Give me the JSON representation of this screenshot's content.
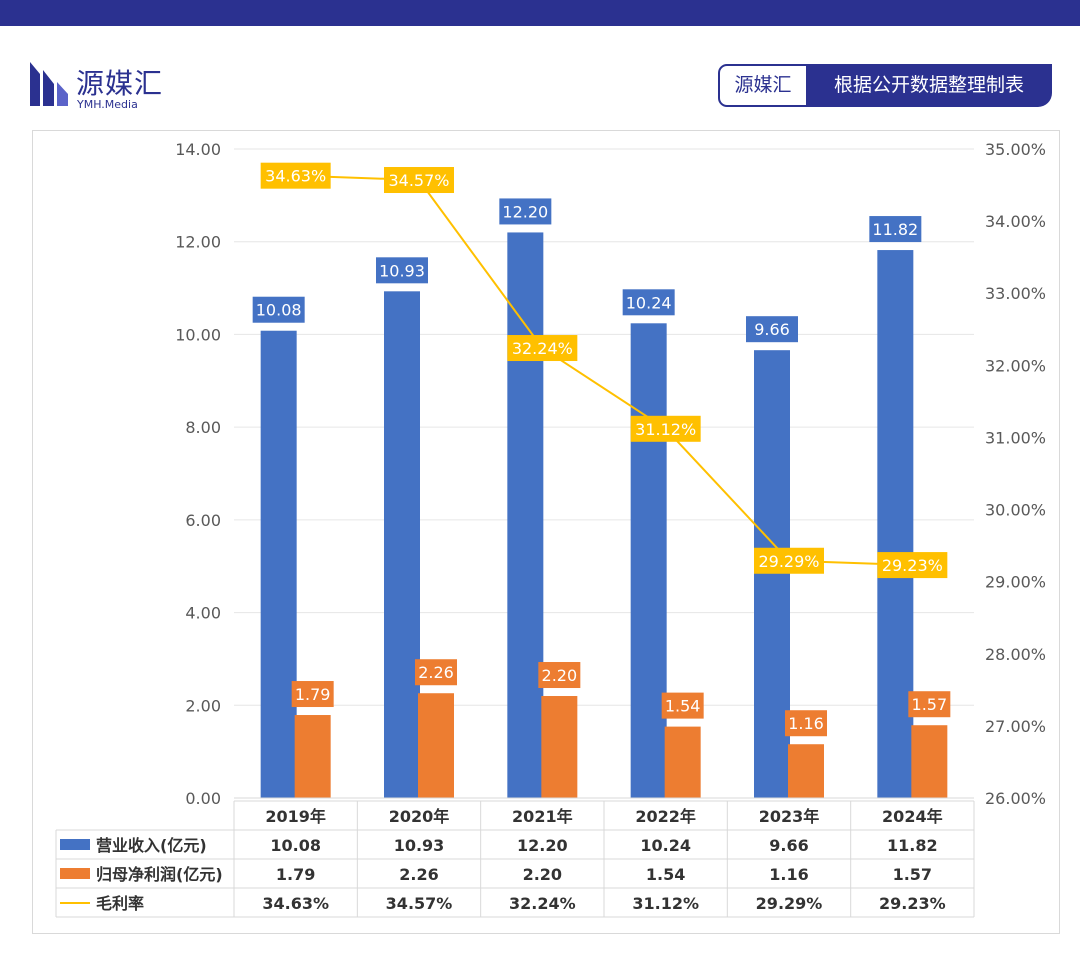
{
  "brand": {
    "name": "源媒汇",
    "domain": "YMH.Media"
  },
  "source_tag": {
    "brand": "源媒汇",
    "text": "根据公开数据整理制表"
  },
  "colors": {
    "revenue": "#4472c4",
    "profit": "#ed7d31",
    "margin": "#ffc000",
    "brand": "#2b3190"
  },
  "chart_data": {
    "type": "bar",
    "categories": [
      "2019年",
      "2020年",
      "2021年",
      "2022年",
      "2023年",
      "2024年"
    ],
    "series": [
      {
        "name": "营业收入(亿元)",
        "type": "bar",
        "axis": "left",
        "values": [
          10.08,
          10.93,
          12.2,
          10.24,
          9.66,
          11.82
        ],
        "labels": [
          "10.08",
          "10.93",
          "12.20",
          "10.24",
          "9.66",
          "11.82"
        ]
      },
      {
        "name": "归母净利润(亿元)",
        "type": "bar",
        "axis": "left",
        "values": [
          1.79,
          2.26,
          2.2,
          1.54,
          1.16,
          1.57
        ],
        "labels": [
          "1.79",
          "2.26",
          "2.20",
          "1.54",
          "1.16",
          "1.57"
        ]
      },
      {
        "name": "毛利率",
        "type": "line",
        "axis": "right",
        "values": [
          34.63,
          34.57,
          32.24,
          31.12,
          29.29,
          29.23
        ],
        "labels": [
          "34.63%",
          "34.57%",
          "32.24%",
          "31.12%",
          "29.29%",
          "29.23%"
        ]
      }
    ],
    "y_left": {
      "min": 0,
      "max": 14,
      "ticks": [
        "0.00",
        "2.00",
        "4.00",
        "6.00",
        "8.00",
        "10.00",
        "12.00",
        "14.00"
      ]
    },
    "y_right": {
      "min": 26,
      "max": 35,
      "ticks": [
        "26.00%",
        "27.00%",
        "28.00%",
        "29.00%",
        "30.00%",
        "31.00%",
        "32.00%",
        "33.00%",
        "34.00%",
        "35.00%"
      ]
    },
    "grid": true,
    "legend": "data-table"
  }
}
